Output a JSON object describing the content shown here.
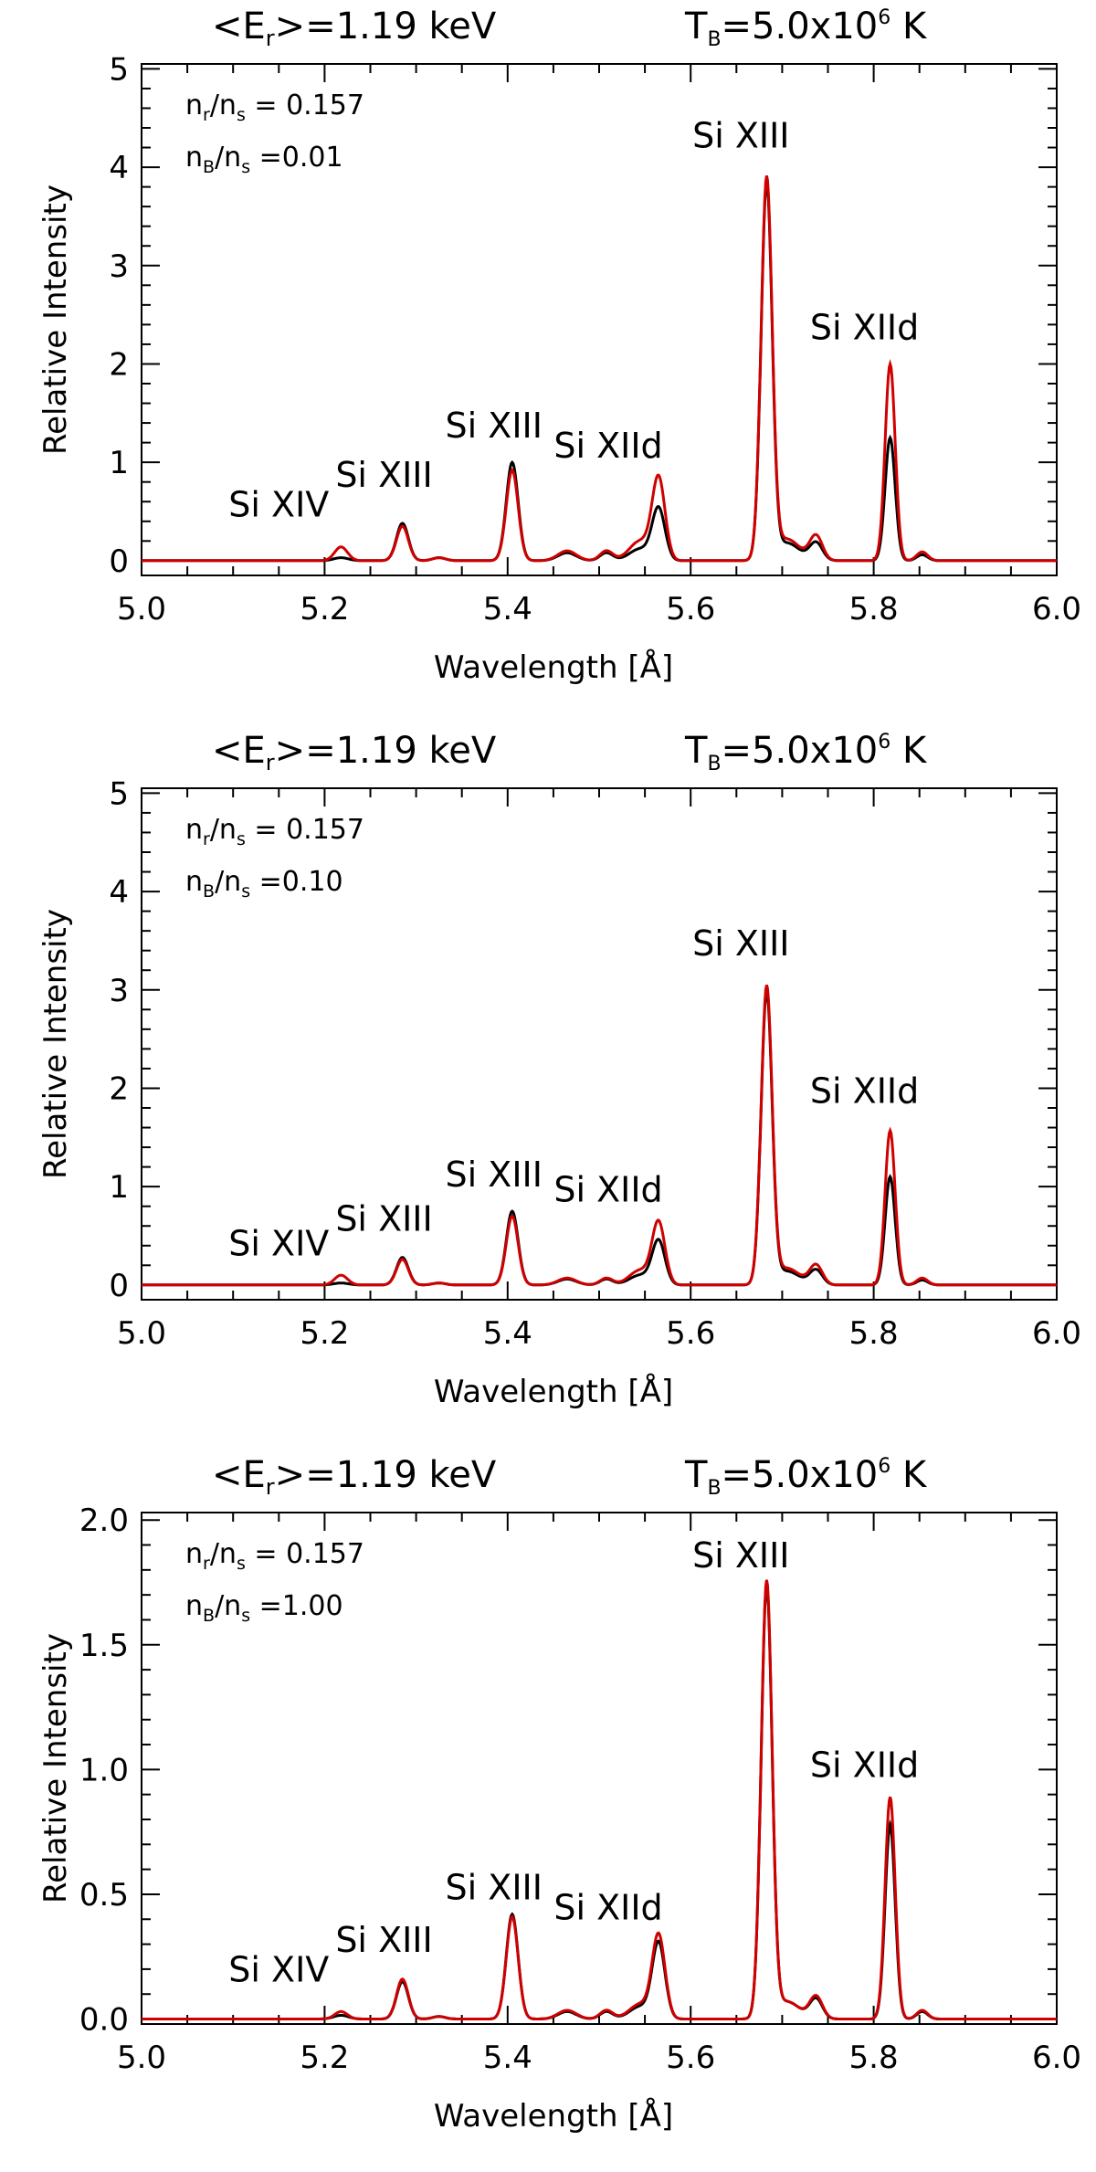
{
  "chart_data": [
    {
      "type": "line",
      "title_left": "<E",
      "title_left_sub": "r",
      "title_left_rest": ">=1.19  keV",
      "title_right": "T",
      "title_right_sub": "B",
      "title_right_rest": "=5.0x10",
      "title_right_sup": "6",
      "title_right_end": " K",
      "xlabel": "Wavelength [Å]",
      "ylabel": "Relative Intensity",
      "xlim": [
        5.0,
        6.0
      ],
      "ylim": [
        -0.15,
        5.05
      ],
      "xticks": [
        "5.0",
        "5.2",
        "5.4",
        "5.6",
        "5.8",
        "6.0"
      ],
      "yticks": [
        "0",
        "1",
        "2",
        "3",
        "4",
        "5"
      ],
      "ann1": "n",
      "ann1_sub": "r",
      "ann1_mid": "/n",
      "ann1_sub2": "s",
      "ann1_val": " = 0.157",
      "ann2": "n",
      "ann2_sub": "B",
      "ann2_mid": "/n",
      "ann2_sub2": "s",
      "ann2_val": " =0.01",
      "peak_labels": [
        {
          "text": "Si  XIV",
          "x": 5.15,
          "y": 0.45
        },
        {
          "text": "Si  XIII",
          "x": 5.265,
          "y": 0.75
        },
        {
          "text": "Si  XIII",
          "x": 5.385,
          "y": 1.25
        },
        {
          "text": "Si  XIId",
          "x": 5.51,
          "y": 1.05
        },
        {
          "text": "Si  XIII",
          "x": 5.655,
          "y": 4.2
        },
        {
          "text": "Si  XIId",
          "x": 5.79,
          "y": 2.25
        }
      ],
      "series": [
        {
          "name": "black",
          "color": "#000000",
          "peaks": [
            [
              5.218,
              0.03,
              0.008
            ],
            [
              5.285,
              0.38,
              0.0065
            ],
            [
              5.325,
              0.03,
              0.007
            ],
            [
              5.405,
              1.0,
              0.0065
            ],
            [
              5.465,
              0.08,
              0.01
            ],
            [
              5.508,
              0.08,
              0.007
            ],
            [
              5.545,
              0.12,
              0.012
            ],
            [
              5.565,
              0.52,
              0.007
            ],
            [
              5.683,
              3.8,
              0.006
            ],
            [
              5.705,
              0.18,
              0.014
            ],
            [
              5.737,
              0.18,
              0.007
            ],
            [
              5.818,
              1.25,
              0.0055
            ],
            [
              5.853,
              0.06,
              0.006
            ]
          ]
        },
        {
          "name": "red",
          "color": "#d00000",
          "peaks": [
            [
              5.218,
              0.14,
              0.007
            ],
            [
              5.285,
              0.35,
              0.0065
            ],
            [
              5.325,
              0.03,
              0.007
            ],
            [
              5.405,
              0.92,
              0.0065
            ],
            [
              5.465,
              0.1,
              0.01
            ],
            [
              5.508,
              0.1,
              0.007
            ],
            [
              5.545,
              0.2,
              0.012
            ],
            [
              5.565,
              0.82,
              0.007
            ],
            [
              5.683,
              3.85,
              0.006
            ],
            [
              5.705,
              0.22,
              0.014
            ],
            [
              5.737,
              0.25,
              0.007
            ],
            [
              5.818,
              2.0,
              0.0055
            ],
            [
              5.853,
              0.09,
              0.006
            ]
          ]
        }
      ]
    },
    {
      "type": "line",
      "title_left": "<E",
      "title_left_sub": "r",
      "title_left_rest": ">=1.19  keV",
      "title_right": "T",
      "title_right_sub": "B",
      "title_right_rest": "=5.0x10",
      "title_right_sup": "6",
      "title_right_end": " K",
      "xlabel": "Wavelength [Å]",
      "ylabel": "Relative Intensity",
      "xlim": [
        5.0,
        6.0
      ],
      "ylim": [
        -0.15,
        5.05
      ],
      "xticks": [
        "5.0",
        "5.2",
        "5.4",
        "5.6",
        "5.8",
        "6.0"
      ],
      "yticks": [
        "0",
        "1",
        "2",
        "3",
        "4",
        "5"
      ],
      "ann1": "n",
      "ann1_sub": "r",
      "ann1_mid": "/n",
      "ann1_sub2": "s",
      "ann1_val": " = 0.157",
      "ann2": "n",
      "ann2_sub": "B",
      "ann2_mid": "/n",
      "ann2_sub2": "s",
      "ann2_val": " =0.10",
      "peak_labels": [
        {
          "text": "Si  XIV",
          "x": 5.15,
          "y": 0.3
        },
        {
          "text": "Si  XIII",
          "x": 5.265,
          "y": 0.55
        },
        {
          "text": "Si  XIII",
          "x": 5.385,
          "y": 1.0
        },
        {
          "text": "Si  XIId",
          "x": 5.51,
          "y": 0.85
        },
        {
          "text": "Si  XIII",
          "x": 5.655,
          "y": 3.35
        },
        {
          "text": "Si  XIId",
          "x": 5.79,
          "y": 1.85
        }
      ],
      "series": [
        {
          "name": "black",
          "color": "#000000",
          "peaks": [
            [
              5.218,
              0.02,
              0.008
            ],
            [
              5.285,
              0.28,
              0.0065
            ],
            [
              5.325,
              0.02,
              0.007
            ],
            [
              5.405,
              0.75,
              0.0065
            ],
            [
              5.465,
              0.06,
              0.01
            ],
            [
              5.508,
              0.06,
              0.007
            ],
            [
              5.545,
              0.1,
              0.012
            ],
            [
              5.565,
              0.44,
              0.007
            ],
            [
              5.683,
              2.95,
              0.006
            ],
            [
              5.705,
              0.14,
              0.014
            ],
            [
              5.737,
              0.15,
              0.007
            ],
            [
              5.818,
              1.1,
              0.0055
            ],
            [
              5.853,
              0.05,
              0.006
            ]
          ]
        },
        {
          "name": "red",
          "color": "#d00000",
          "peaks": [
            [
              5.218,
              0.1,
              0.007
            ],
            [
              5.285,
              0.26,
              0.0065
            ],
            [
              5.325,
              0.02,
              0.007
            ],
            [
              5.405,
              0.7,
              0.0065
            ],
            [
              5.465,
              0.07,
              0.01
            ],
            [
              5.508,
              0.07,
              0.007
            ],
            [
              5.545,
              0.15,
              0.012
            ],
            [
              5.565,
              0.62,
              0.007
            ],
            [
              5.683,
              3.0,
              0.006
            ],
            [
              5.705,
              0.17,
              0.014
            ],
            [
              5.737,
              0.2,
              0.007
            ],
            [
              5.818,
              1.57,
              0.0055
            ],
            [
              5.853,
              0.07,
              0.006
            ]
          ]
        }
      ]
    },
    {
      "type": "line",
      "title_left": "<E",
      "title_left_sub": "r",
      "title_left_rest": ">=1.19  keV",
      "title_right": "T",
      "title_right_sub": "B",
      "title_right_rest": "=5.0x10",
      "title_right_sup": "6",
      "title_right_end": " K",
      "xlabel": "Wavelength [Å]",
      "ylabel": "Relative Intensity",
      "xlim": [
        5.0,
        6.0
      ],
      "ylim": [
        -0.02,
        2.03
      ],
      "xticks": [
        "5.0",
        "5.2",
        "5.4",
        "5.6",
        "5.8",
        "6.0"
      ],
      "yticks": [
        "0.0",
        "0.5",
        "1.0",
        "1.5",
        "2.0"
      ],
      "ann1": "n",
      "ann1_sub": "r",
      "ann1_mid": "/n",
      "ann1_sub2": "s",
      "ann1_val": " = 0.157",
      "ann2": "n",
      "ann2_sub": "B",
      "ann2_mid": "/n",
      "ann2_sub2": "s",
      "ann2_val": " =1.00",
      "peak_labels": [
        {
          "text": "Si  XIV",
          "x": 5.15,
          "y": 0.15
        },
        {
          "text": "Si  XIII",
          "x": 5.265,
          "y": 0.27
        },
        {
          "text": "Si  XIII",
          "x": 5.385,
          "y": 0.48
        },
        {
          "text": "Si  XIId",
          "x": 5.51,
          "y": 0.4
        },
        {
          "text": "Si  XIII",
          "x": 5.655,
          "y": 1.81
        },
        {
          "text": "Si  XIId",
          "x": 5.79,
          "y": 0.97
        }
      ],
      "series": [
        {
          "name": "black",
          "color": "#000000",
          "peaks": [
            [
              5.218,
              0.015,
              0.008
            ],
            [
              5.285,
              0.15,
              0.0065
            ],
            [
              5.325,
              0.01,
              0.007
            ],
            [
              5.405,
              0.42,
              0.0065
            ],
            [
              5.465,
              0.03,
              0.01
            ],
            [
              5.508,
              0.03,
              0.007
            ],
            [
              5.545,
              0.05,
              0.012
            ],
            [
              5.565,
              0.3,
              0.007
            ],
            [
              5.683,
              1.72,
              0.006
            ],
            [
              5.705,
              0.07,
              0.014
            ],
            [
              5.737,
              0.08,
              0.007
            ],
            [
              5.818,
              0.78,
              0.0055
            ],
            [
              5.853,
              0.03,
              0.006
            ]
          ]
        },
        {
          "name": "red",
          "color": "#d00000",
          "peaks": [
            [
              5.218,
              0.03,
              0.007
            ],
            [
              5.285,
              0.16,
              0.0065
            ],
            [
              5.325,
              0.01,
              0.007
            ],
            [
              5.405,
              0.41,
              0.0065
            ],
            [
              5.465,
              0.035,
              0.01
            ],
            [
              5.508,
              0.035,
              0.007
            ],
            [
              5.545,
              0.06,
              0.012
            ],
            [
              5.565,
              0.33,
              0.007
            ],
            [
              5.683,
              1.74,
              0.006
            ],
            [
              5.705,
              0.07,
              0.014
            ],
            [
              5.737,
              0.09,
              0.007
            ],
            [
              5.818,
              0.89,
              0.0055
            ],
            [
              5.853,
              0.035,
              0.006
            ]
          ]
        }
      ]
    }
  ]
}
